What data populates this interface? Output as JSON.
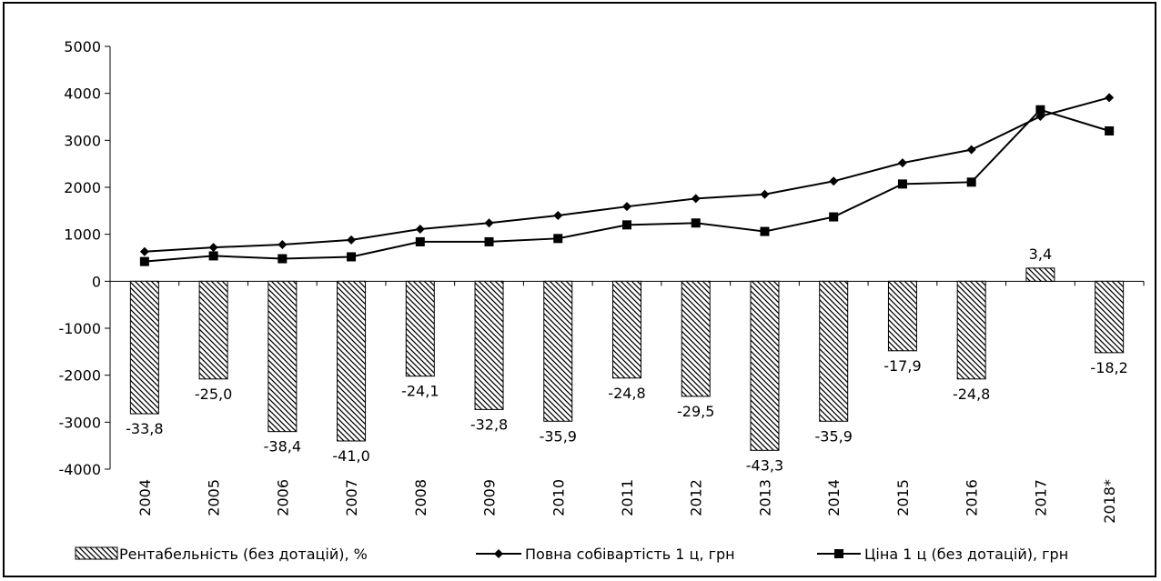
{
  "chart_data": {
    "type": "bar",
    "categories": [
      "2004",
      "2005",
      "2006",
      "2007",
      "2008",
      "2009",
      "2010",
      "2011",
      "2012",
      "2013",
      "2014",
      "2015",
      "2016",
      "2017",
      "2018*"
    ],
    "ylim": [
      -4000,
      5000
    ],
    "yticks": [
      -4000,
      -3000,
      -2000,
      -1000,
      0,
      1000,
      2000,
      3000,
      4000,
      5000
    ],
    "grid": false,
    "legend_position": "bottom",
    "series": [
      {
        "name": "Рентабельність  (без дотацій), %",
        "kind": "bar",
        "values": [
          -2820,
          -2080,
          -3200,
          -3400,
          -2020,
          -2730,
          -2980,
          -2060,
          -2450,
          -3600,
          -2980,
          -1480,
          -2080,
          280,
          -1520
        ],
        "labels": [
          "-33,8",
          "-25,0",
          "-38,4",
          "-41,0",
          "-24,1",
          "-32,8",
          "-35,9",
          "-24,8",
          "-29,5",
          "-43,3",
          "-35,9",
          "-17,9",
          "-24,8",
          "3,4",
          "-18,2"
        ]
      },
      {
        "name": "Повна собівартість 1 ц, грн",
        "kind": "line",
        "marker": "diamond",
        "values": [
          630,
          720,
          780,
          880,
          1110,
          1240,
          1400,
          1590,
          1760,
          1850,
          2130,
          2520,
          2800,
          3510,
          3910
        ]
      },
      {
        "name": "Ціна 1 ц (без дотацій), грн",
        "kind": "line",
        "marker": "square",
        "values": [
          420,
          540,
          480,
          520,
          840,
          840,
          910,
          1200,
          1240,
          1060,
          1370,
          2070,
          2110,
          3650,
          3200
        ]
      }
    ]
  }
}
